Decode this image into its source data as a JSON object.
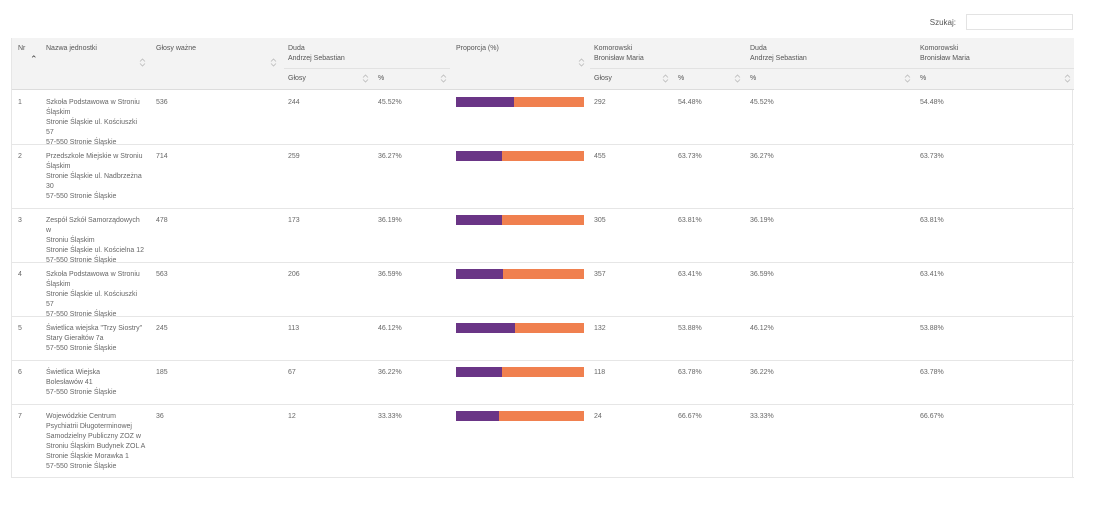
{
  "search": {
    "label": "Szukaj:",
    "value": ""
  },
  "header": {
    "nr": "Nr",
    "unit": "Nazwa jednostki",
    "valid": "Głosy ważne",
    "cand1": "Duda\nAndrzej Sebastian",
    "prop": "Proporcja (%)",
    "cand2": "Komorowski\nBronisław Maria",
    "cand1b": "Duda\nAndrzej Sebastian",
    "cand2b": "Komorowski\nBronisław Maria",
    "votes": "Głosy",
    "pct": "%"
  },
  "colors": {
    "duda": "#6a3586",
    "komorowski": "#f0804f"
  },
  "rows": [
    {
      "nr": "1",
      "name": "Szkoła Podstawowa w Stroniu\nŚląskim\nStronie Śląskie ul. Kościuszki 57\n57-550 Stronie Śląskie",
      "valid": "536",
      "d_votes": "244",
      "d_pct": "45.52%",
      "k_votes": "292",
      "k_pct": "54.48%",
      "d_pct2": "45.52%",
      "k_pct2": "54.48%",
      "d_frac": 0.4552
    },
    {
      "nr": "2",
      "name": "Przedszkole Miejskie w Stroniu\nŚląskim\nStronie Śląskie ul. Nadbrzeżna\n30\n57-550 Stronie Śląskie",
      "valid": "714",
      "d_votes": "259",
      "d_pct": "36.27%",
      "k_votes": "455",
      "k_pct": "63.73%",
      "d_pct2": "36.27%",
      "k_pct2": "63.73%",
      "d_frac": 0.3627
    },
    {
      "nr": "3",
      "name": "Zespół Szkół Samorządowych w\nStroniu Śląskim\nStronie Śląskie ul. Kościelna 12\n57-550 Stronie Śląskie",
      "valid": "478",
      "d_votes": "173",
      "d_pct": "36.19%",
      "k_votes": "305",
      "k_pct": "63.81%",
      "d_pct2": "36.19%",
      "k_pct2": "63.81%",
      "d_frac": 0.3619
    },
    {
      "nr": "4",
      "name": "Szkoła Podstawowa w Stroniu\nŚląskim\nStronie Śląskie ul. Kościuszki 57\n57-550 Stronie Śląskie",
      "valid": "563",
      "d_votes": "206",
      "d_pct": "36.59%",
      "k_votes": "357",
      "k_pct": "63.41%",
      "d_pct2": "36.59%",
      "k_pct2": "63.41%",
      "d_frac": 0.3659
    },
    {
      "nr": "5",
      "name": "Świetlica wiejska \"Trzy Siostry\"\nStary Gierałtów 7a\n57-550 Stronie Śląskie",
      "valid": "245",
      "d_votes": "113",
      "d_pct": "46.12%",
      "k_votes": "132",
      "k_pct": "53.88%",
      "d_pct2": "46.12%",
      "k_pct2": "53.88%",
      "d_frac": 0.4612
    },
    {
      "nr": "6",
      "name": "Świetlica Wiejska\nBolesławów 41\n57-550 Stronie Śląskie",
      "valid": "185",
      "d_votes": "67",
      "d_pct": "36.22%",
      "k_votes": "118",
      "k_pct": "63.78%",
      "d_pct2": "36.22%",
      "k_pct2": "63.78%",
      "d_frac": 0.3622
    },
    {
      "nr": "7",
      "name": "Wojewódzkie Centrum\nPsychiatrii Długoterminowej\nSamodzielny Publiczny ZOZ w\nStroniu Śląskim Budynek ZOL A\nStronie Śląskie Morawka 1\n57-550 Stronie Śląskie",
      "valid": "36",
      "d_votes": "12",
      "d_pct": "33.33%",
      "k_votes": "24",
      "k_pct": "66.67%",
      "d_pct2": "33.33%",
      "k_pct2": "66.67%",
      "d_frac": 0.3333
    }
  ]
}
